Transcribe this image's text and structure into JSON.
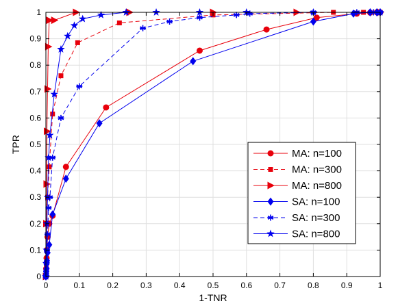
{
  "chart_data": {
    "type": "line",
    "title": "",
    "xlabel": "1-TNR",
    "ylabel": "TPR",
    "xlim": [
      0,
      1
    ],
    "ylim": [
      0,
      1
    ],
    "xticks": [
      "0",
      "0.1",
      "0.2",
      "0.3",
      "0.4",
      "0.5",
      "0.6",
      "0.7",
      "0.8",
      "0.9",
      "1"
    ],
    "yticks": [
      "0",
      "0.1",
      "0.2",
      "0.3",
      "0.4",
      "0.5",
      "0.6",
      "0.7",
      "0.8",
      "0.9",
      "1"
    ],
    "grid": true,
    "legend_position": "bottom-right",
    "series": [
      {
        "name": "MA: n=100",
        "color": "#e8000b",
        "dash": "solid",
        "marker": "circle",
        "x": [
          0,
          0.001,
          0.002,
          0.003,
          0.005,
          0.01,
          0.02,
          0.06,
          0.18,
          0.46,
          0.66,
          0.81,
          0.93,
          0.97,
          0.99,
          1.0
        ],
        "y": [
          0,
          0.03,
          0.07,
          0.1,
          0.15,
          0.2,
          0.23,
          0.415,
          0.64,
          0.855,
          0.935,
          0.98,
          0.995,
          0.999,
          1.0,
          1.0
        ]
      },
      {
        "name": "MA: n=300",
        "color": "#e8000b",
        "dash": "dashed",
        "marker": "square",
        "x": [
          0,
          0.001,
          0.002,
          0.003,
          0.005,
          0.01,
          0.02,
          0.045,
          0.095,
          0.22,
          0.5,
          0.86,
          0.95,
          0.99,
          1.0
        ],
        "y": [
          0,
          0.05,
          0.1,
          0.2,
          0.3,
          0.415,
          0.615,
          0.76,
          0.885,
          0.96,
          0.99,
          1.0,
          1.0,
          1.0,
          1.0
        ]
      },
      {
        "name": "MA: n=800",
        "color": "#e8000b",
        "dash": "solid",
        "marker": "triangle-right",
        "x": [
          0,
          0.001,
          0.002,
          0.003,
          0.005,
          0.007,
          0.01,
          0.025,
          0.09,
          0.25,
          0.5,
          0.75,
          1.0
        ],
        "y": [
          0,
          0.2,
          0.35,
          0.55,
          0.71,
          0.87,
          0.97,
          0.97,
          1.0,
          1.0,
          1.0,
          1.0,
          1.0
        ]
      },
      {
        "name": "SA: n=100",
        "color": "#0000ee",
        "dash": "solid",
        "marker": "diamond",
        "x": [
          0,
          0.001,
          0.002,
          0.003,
          0.005,
          0.01,
          0.02,
          0.06,
          0.16,
          0.44,
          0.8,
          0.92,
          0.97,
          0.99,
          1.0
        ],
        "y": [
          0,
          0.01,
          0.03,
          0.06,
          0.09,
          0.12,
          0.235,
          0.37,
          0.58,
          0.815,
          0.965,
          0.995,
          1.0,
          1.0,
          1.0
        ]
      },
      {
        "name": "SA: n=300",
        "color": "#0000ee",
        "dash": "dashed",
        "marker": "asterisk",
        "x": [
          0,
          0.001,
          0.002,
          0.003,
          0.005,
          0.008,
          0.012,
          0.02,
          0.045,
          0.1,
          0.29,
          0.37,
          0.46,
          0.57,
          0.61,
          0.8,
          0.93,
          0.98,
          1.0
        ],
        "y": [
          0,
          0.02,
          0.05,
          0.1,
          0.16,
          0.26,
          0.3,
          0.45,
          0.6,
          0.72,
          0.94,
          0.965,
          0.98,
          0.99,
          0.995,
          1.0,
          1.0,
          1.0,
          1.0
        ]
      },
      {
        "name": "SA: n=800",
        "color": "#0000ee",
        "dash": "solid",
        "marker": "star",
        "x": [
          0,
          0.001,
          0.002,
          0.003,
          0.005,
          0.008,
          0.012,
          0.025,
          0.045,
          0.065,
          0.085,
          0.11,
          0.165,
          0.24,
          0.33,
          0.46,
          0.6,
          0.8,
          1.0
        ],
        "y": [
          0,
          0.05,
          0.1,
          0.2,
          0.3,
          0.45,
          0.535,
          0.69,
          0.86,
          0.91,
          0.95,
          0.975,
          0.99,
          1.0,
          1.0,
          1.0,
          1.0,
          1.0,
          1.0
        ]
      }
    ]
  }
}
